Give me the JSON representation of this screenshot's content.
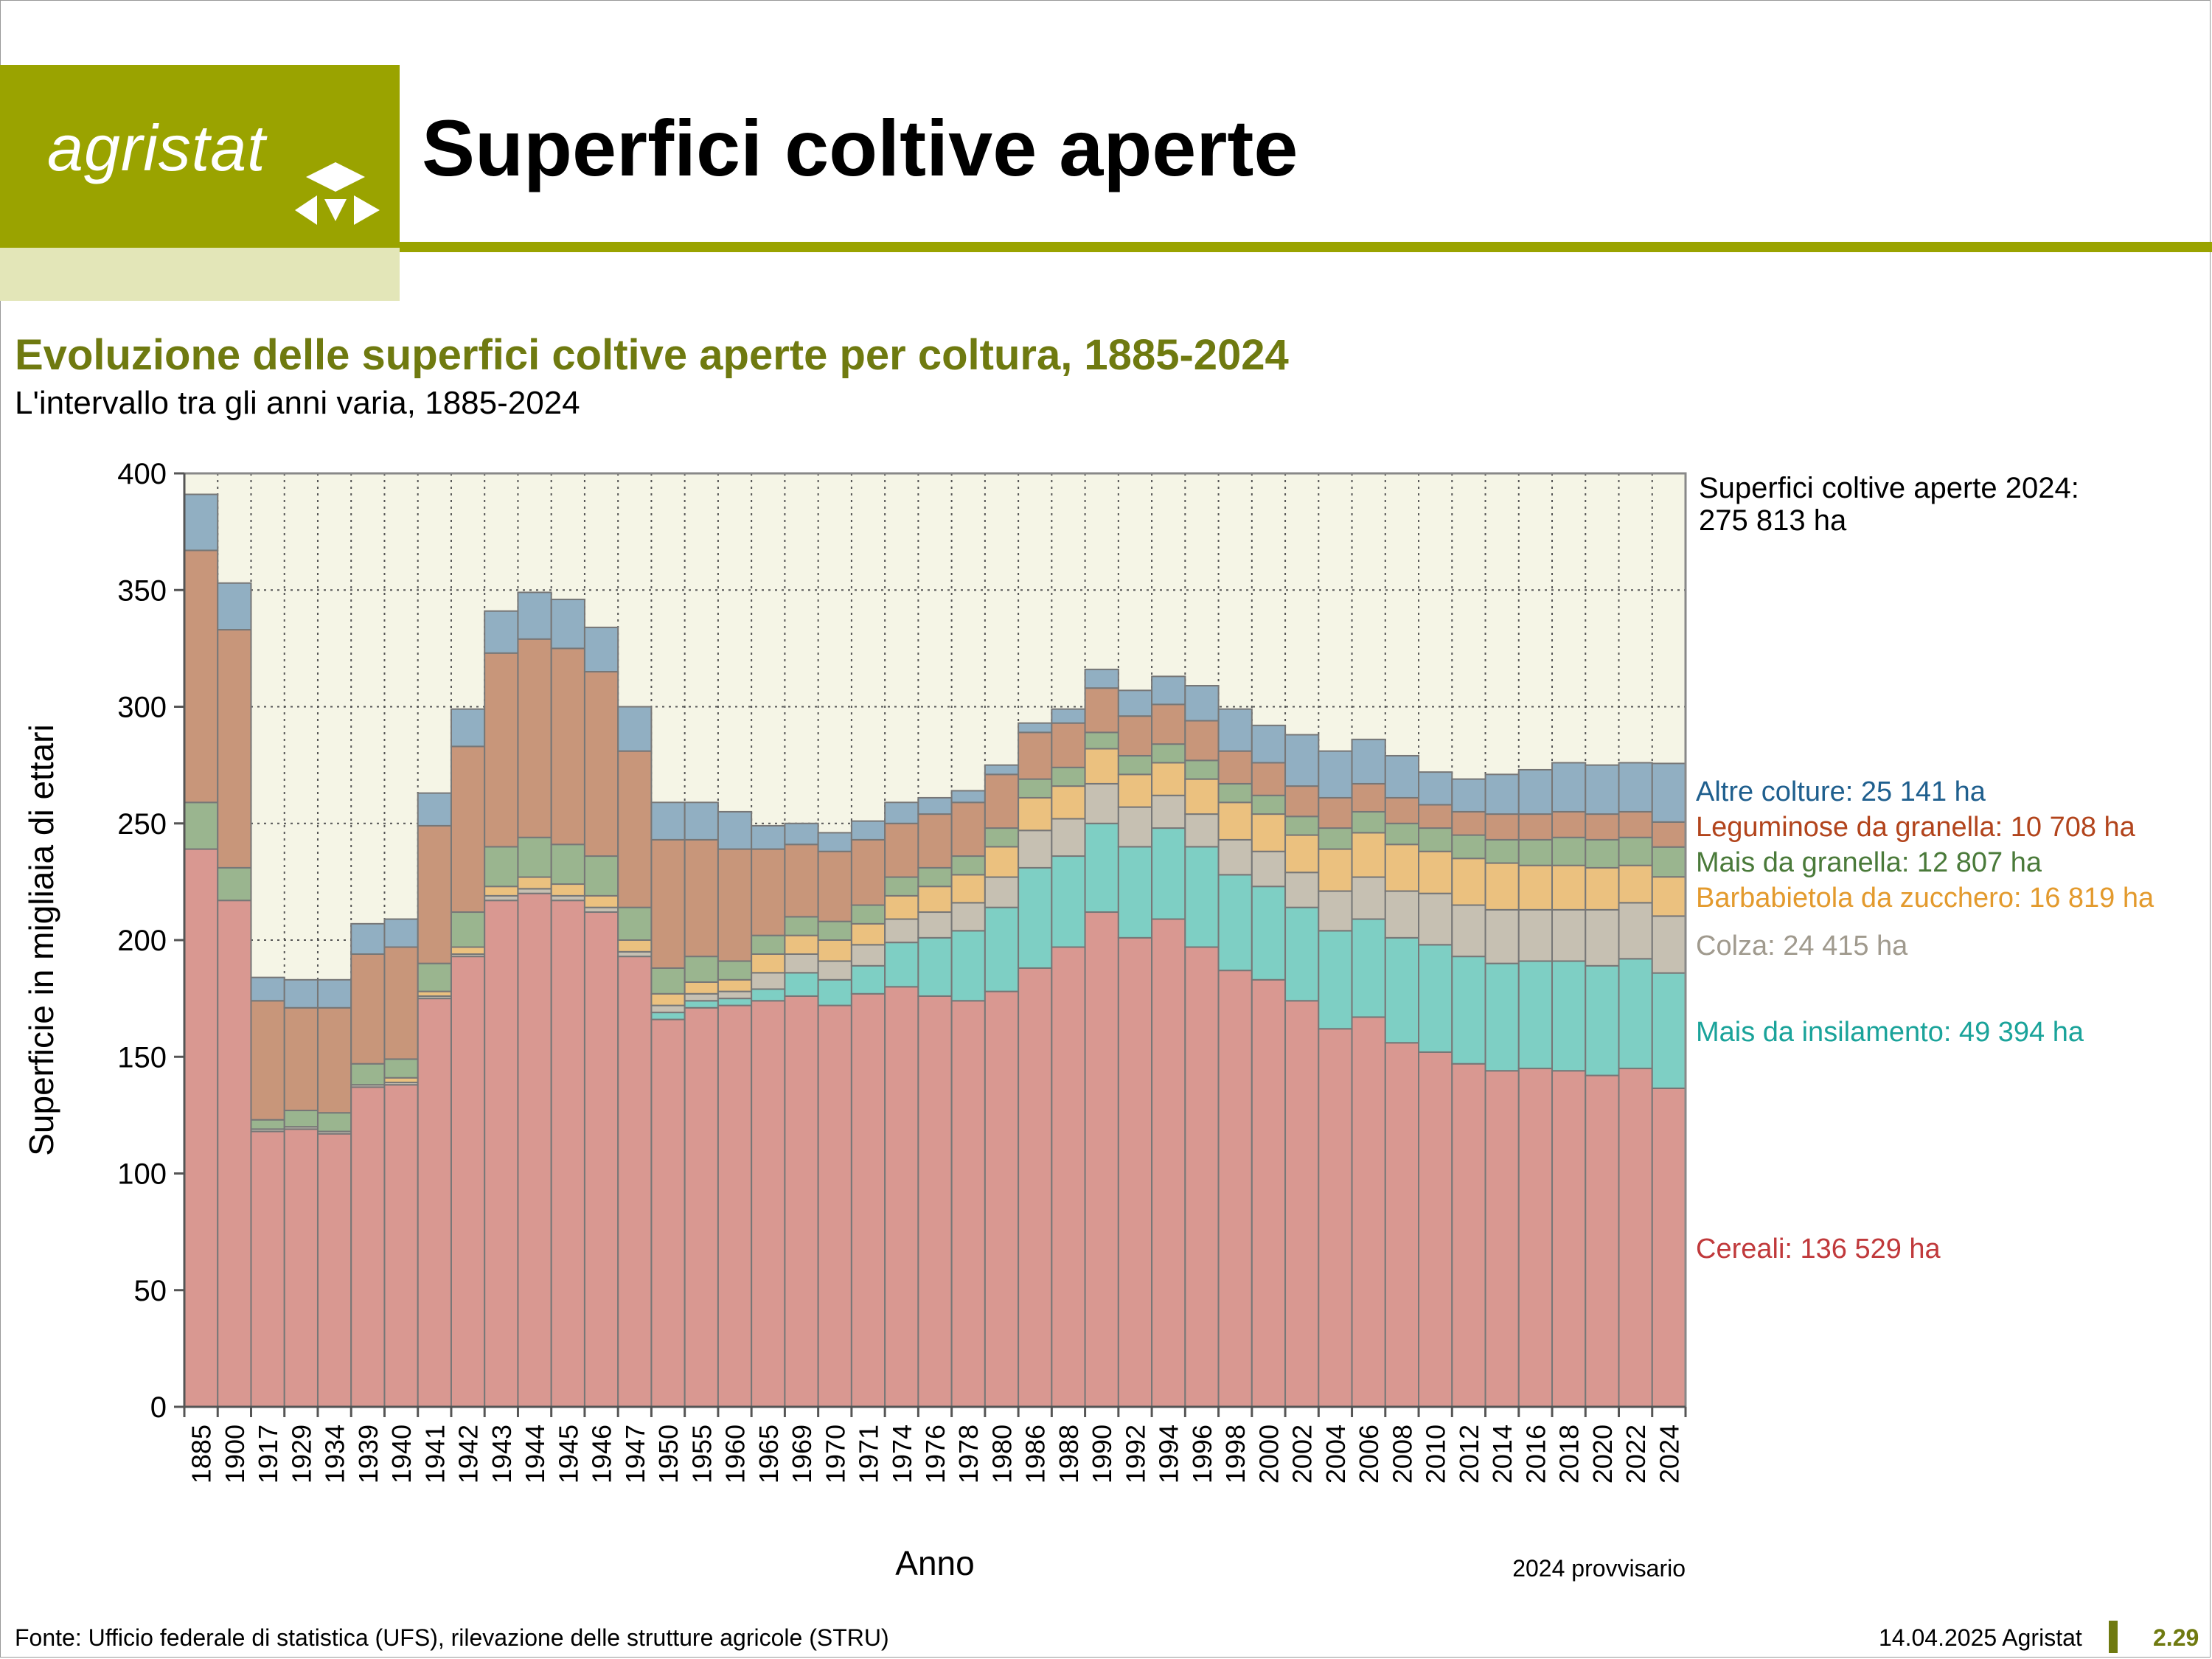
{
  "logo": {
    "text": "agristat"
  },
  "header": {
    "title": "Superfici coltive aperte"
  },
  "subtitle": "Evoluzione delle superfici coltive aperte per coltura, 1885-2024",
  "subsubtitle": "L'intervallo tra gli anni varia, 1885-2024",
  "footer": {
    "source": "Fonte: Ufficio federale di statistica (UFS), rilevazione delle strutture agricole (STRU)",
    "date": "14.04.2025 Agristat",
    "page": "2.29"
  },
  "chart_data": {
    "type": "bar",
    "stacked": true,
    "ylabel": "Superficie in migliaia di ettari",
    "xlabel": "Anno",
    "ylim": [
      0,
      400
    ],
    "yticks": [
      0,
      50,
      100,
      150,
      200,
      250,
      300,
      350,
      400
    ],
    "grid": true,
    "total_label": [
      "Superfici coltive aperte 2024:",
      "275 813 ha"
    ],
    "note": "2024 provvisario",
    "categories": [
      "1885",
      "1900",
      "1917",
      "1929",
      "1934",
      "1939",
      "1940",
      "1941",
      "1942",
      "1943",
      "1944",
      "1945",
      "1946",
      "1947",
      "1950",
      "1955",
      "1960",
      "1965",
      "1969",
      "1970",
      "1971",
      "1974",
      "1976",
      "1978",
      "1980",
      "1986",
      "1988",
      "1990",
      "1992",
      "1994",
      "1996",
      "1998",
      "2000",
      "2002",
      "2004",
      "2006",
      "2008",
      "2010",
      "2012",
      "2014",
      "2016",
      "2018",
      "2020",
      "2022",
      "2024"
    ],
    "series": [
      {
        "name": "Cereali",
        "legend": "Cereali: 136 529 ha",
        "color": "#d99891",
        "label_color": "#c0393b",
        "values": [
          239,
          217,
          118,
          119,
          117,
          137,
          138,
          175,
          193,
          217,
          220,
          217,
          212,
          193,
          166,
          171,
          172,
          174,
          176,
          172,
          177,
          180,
          176,
          174,
          178,
          188,
          197,
          212,
          201,
          209,
          197,
          187,
          183,
          174,
          162,
          167,
          156,
          152,
          147,
          144,
          145,
          144,
          142,
          145,
          136.5
        ]
      },
      {
        "name": "Mais da insilamento",
        "legend": "Mais da insilamento: 49 394 ha",
        "color": "#7ecfc4",
        "label_color": "#1aa39a",
        "values": [
          0,
          0,
          0,
          0,
          0,
          0,
          0,
          0,
          0,
          0,
          0,
          0,
          0,
          0,
          3,
          3,
          3,
          5,
          10,
          11,
          12,
          19,
          25,
          30,
          36,
          43,
          39,
          38,
          39,
          39,
          43,
          41,
          40,
          40,
          42,
          42,
          45,
          46,
          46,
          46,
          46,
          47,
          47,
          47,
          49.4
        ]
      },
      {
        "name": "Colza",
        "legend": "Colza: 24 415 ha",
        "color": "#c6c0b2",
        "label_color": "#a09a8e",
        "values": [
          0,
          0,
          1,
          1,
          1,
          1,
          1,
          1,
          1,
          2,
          2,
          2,
          2,
          2,
          3,
          3,
          3,
          7,
          8,
          8,
          9,
          10,
          11,
          12,
          13,
          16,
          16,
          17,
          17,
          14,
          14,
          15,
          15,
          15,
          17,
          18,
          20,
          22,
          22,
          23,
          22,
          22,
          24,
          24,
          24.4
        ]
      },
      {
        "name": "Barbabietola da zucchero",
        "legend": "Barbabietola da zucchero: 16 819 ha",
        "color": "#ebc17f",
        "label_color": "#e39a2d",
        "values": [
          0,
          0,
          0,
          0,
          0,
          0,
          2,
          2,
          3,
          4,
          5,
          5,
          5,
          5,
          5,
          5,
          5,
          8,
          8,
          9,
          9,
          10,
          11,
          12,
          13,
          14,
          14,
          15,
          14,
          14,
          15,
          16,
          16,
          16,
          18,
          19,
          20,
          18,
          20,
          20,
          19,
          19,
          18,
          16,
          16.8
        ]
      },
      {
        "name": "Mais da granella",
        "legend": "Mais da granella: 12 807 ha",
        "color": "#9ab58f",
        "label_color": "#4a7a3a",
        "values": [
          20,
          14,
          4,
          7,
          8,
          9,
          8,
          12,
          15,
          17,
          17,
          17,
          17,
          14,
          11,
          11,
          8,
          8,
          8,
          8,
          8,
          8,
          8,
          8,
          8,
          8,
          8,
          7,
          8,
          8,
          8,
          8,
          8,
          8,
          9,
          9,
          9,
          10,
          10,
          10,
          11,
          12,
          12,
          12,
          12.8
        ]
      },
      {
        "name": "Leguminose da granella",
        "legend": "Leguminose da granella: 10 708 ha",
        "color": "#c8967a",
        "label_color": "#b2441c",
        "values": [
          108,
          102,
          51,
          44,
          45,
          47,
          48,
          59,
          71,
          83,
          85,
          84,
          79,
          67,
          55,
          50,
          48,
          37,
          31,
          30,
          28,
          23,
          23,
          23,
          23,
          20,
          19,
          19,
          17,
          17,
          17,
          14,
          14,
          13,
          13,
          12,
          11,
          10,
          10,
          11,
          11,
          11,
          11,
          11,
          10.7
        ]
      },
      {
        "name": "Altre colture",
        "legend": "Altre colture: 25 141 ha",
        "color": "#91afc2",
        "label_color": "#1f5f8e",
        "values": [
          24,
          20,
          10,
          12,
          12,
          13,
          12,
          14,
          16,
          18,
          20,
          21,
          19,
          19,
          16,
          16,
          16,
          10,
          9,
          8,
          8,
          9,
          7,
          5,
          4,
          4,
          6,
          8,
          11,
          12,
          15,
          18,
          16,
          22,
          20,
          19,
          18,
          14,
          14,
          17,
          19,
          21,
          21,
          21,
          25.1
        ]
      }
    ]
  }
}
